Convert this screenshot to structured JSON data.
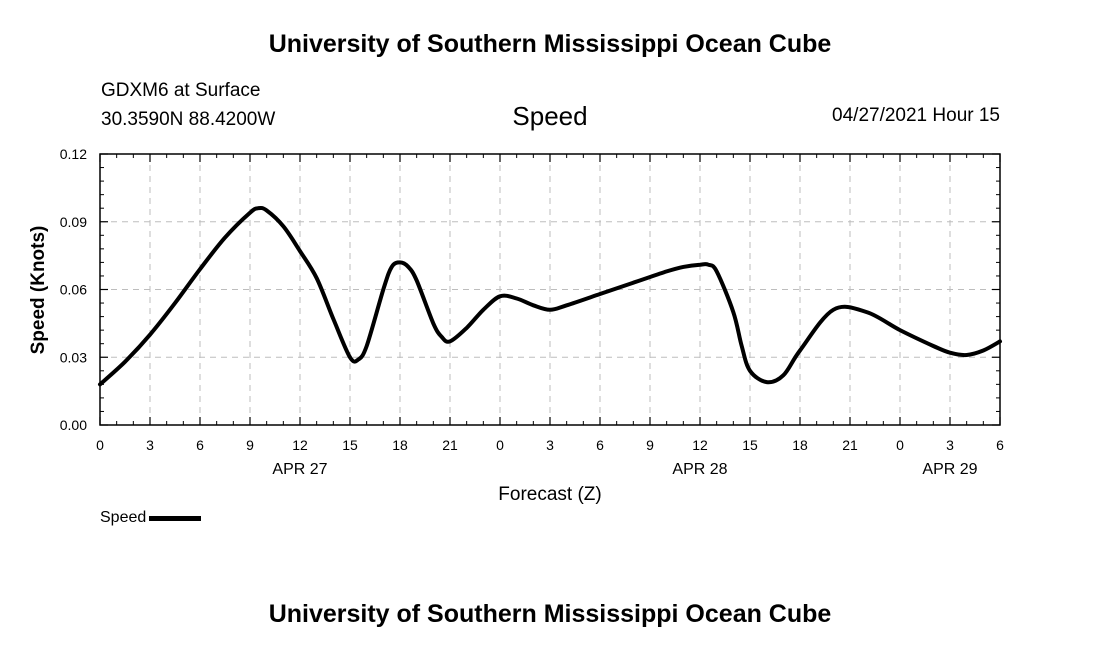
{
  "header": {
    "title": "University of Southern Mississippi Ocean Cube",
    "station_name": "GDXM6 at Surface",
    "station_location": "30.3590N  88.4200W",
    "chart_title": "Speed",
    "timestamp": "04/27/2021 Hour 15"
  },
  "footer": {
    "title": "University of Southern Mississippi Ocean Cube"
  },
  "legend": {
    "label": "Speed"
  },
  "chart_data": {
    "type": "line",
    "title": "Speed",
    "xlabel": "Forecast (Z)",
    "ylabel": "Speed (Knots)",
    "xlim": [
      0,
      54
    ],
    "ylim": [
      0,
      0.12
    ],
    "grid": true,
    "x_tick_labels": [
      "0",
      "3",
      "6",
      "9",
      "12",
      "15",
      "18",
      "21",
      "0",
      "3",
      "6",
      "9",
      "12",
      "15",
      "18",
      "21",
      "0",
      "3",
      "6"
    ],
    "y_tick_labels": [
      "0.00",
      "0.03",
      "0.06",
      "0.09",
      "0.12"
    ],
    "y_ticks": [
      0,
      0.03,
      0.06,
      0.09,
      0.12
    ],
    "date_labels": [
      {
        "label": "APR 27",
        "at_hour": 12
      },
      {
        "label": "APR 28",
        "at_hour": 36
      },
      {
        "label": "APR 29",
        "at_hour": 51
      }
    ],
    "series": [
      {
        "name": "Speed",
        "color": "#000000",
        "x": [
          0,
          1.5,
          3,
          4.5,
          6,
          7.5,
          9,
          9.5,
          10,
          11,
          12,
          13,
          14,
          15,
          15.5,
          16,
          17,
          17.5,
          18,
          18.5,
          19,
          20,
          20.5,
          21,
          22,
          23,
          24,
          25,
          26,
          27,
          28,
          30,
          32,
          34,
          35,
          36,
          36.5,
          37,
          38,
          38.5,
          39,
          40,
          41,
          42,
          44,
          46,
          48,
          50,
          51,
          52,
          53,
          54
        ],
        "y": [
          0.018,
          0.028,
          0.04,
          0.054,
          0.069,
          0.083,
          0.094,
          0.096,
          0.095,
          0.088,
          0.077,
          0.065,
          0.047,
          0.03,
          0.029,
          0.035,
          0.06,
          0.07,
          0.072,
          0.07,
          0.064,
          0.045,
          0.039,
          0.037,
          0.043,
          0.051,
          0.057,
          0.056,
          0.053,
          0.051,
          0.053,
          0.058,
          0.063,
          0.068,
          0.07,
          0.071,
          0.071,
          0.068,
          0.05,
          0.035,
          0.024,
          0.019,
          0.022,
          0.033,
          0.051,
          0.05,
          0.042,
          0.035,
          0.032,
          0.031,
          0.033,
          0.037
        ]
      }
    ]
  }
}
